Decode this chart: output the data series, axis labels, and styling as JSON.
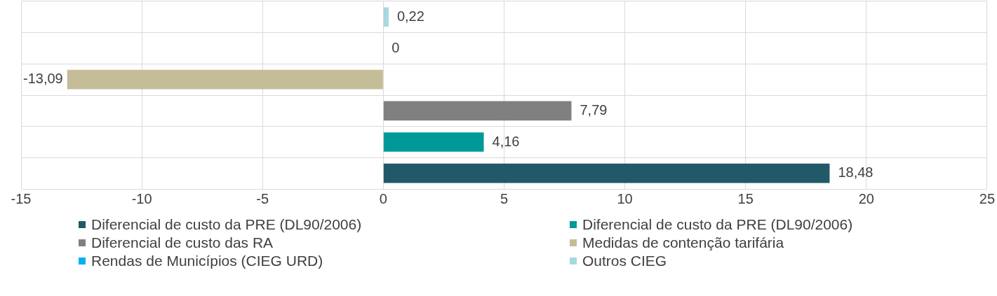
{
  "chart_data": {
    "type": "bar",
    "orientation": "horizontal",
    "categories": [
      null,
      null,
      null,
      null,
      null,
      null
    ],
    "series": [
      {
        "name": "Diferencial de custo da PRE (DL90/2006)",
        "color": "#215968",
        "values": [
          null,
          null,
          null,
          null,
          null,
          18.48
        ],
        "value_labels": [
          null,
          null,
          null,
          null,
          null,
          "18,48"
        ]
      },
      {
        "name": "Diferencial de custo da PRE (DL90/2006)",
        "color": "#009999",
        "values": [
          null,
          null,
          null,
          null,
          4.16,
          null
        ],
        "value_labels": [
          null,
          null,
          null,
          null,
          "4,16",
          null
        ]
      },
      {
        "name": "Diferencial de custo das RA",
        "color": "#808080",
        "values": [
          null,
          null,
          null,
          7.79,
          null,
          null
        ],
        "value_labels": [
          null,
          null,
          null,
          "7,79",
          null,
          null
        ]
      },
      {
        "name": "Medidas de contenção tarifária",
        "color": "#c5bd98",
        "values": [
          null,
          null,
          -13.09,
          null,
          null,
          null
        ],
        "value_labels": [
          null,
          null,
          "-13,09",
          null,
          null,
          null
        ]
      },
      {
        "name": "Rendas de Municípios (CIEG URD)",
        "color": "#00b0f0",
        "values": [
          null,
          0,
          null,
          null,
          null,
          null
        ],
        "value_labels": [
          null,
          "0",
          null,
          null,
          null,
          null
        ]
      },
      {
        "name": "Outros CIEG",
        "color": "#a6d9e0",
        "values": [
          0.22,
          null,
          null,
          null,
          null,
          null
        ],
        "value_labels": [
          "0,22",
          null,
          null,
          null,
          null,
          null
        ]
      }
    ],
    "xlim": [
      -15,
      25
    ],
    "xticks": [
      -15,
      -10,
      -5,
      0,
      5,
      10,
      15,
      20,
      25
    ],
    "grid": true,
    "legend": "bottom"
  }
}
